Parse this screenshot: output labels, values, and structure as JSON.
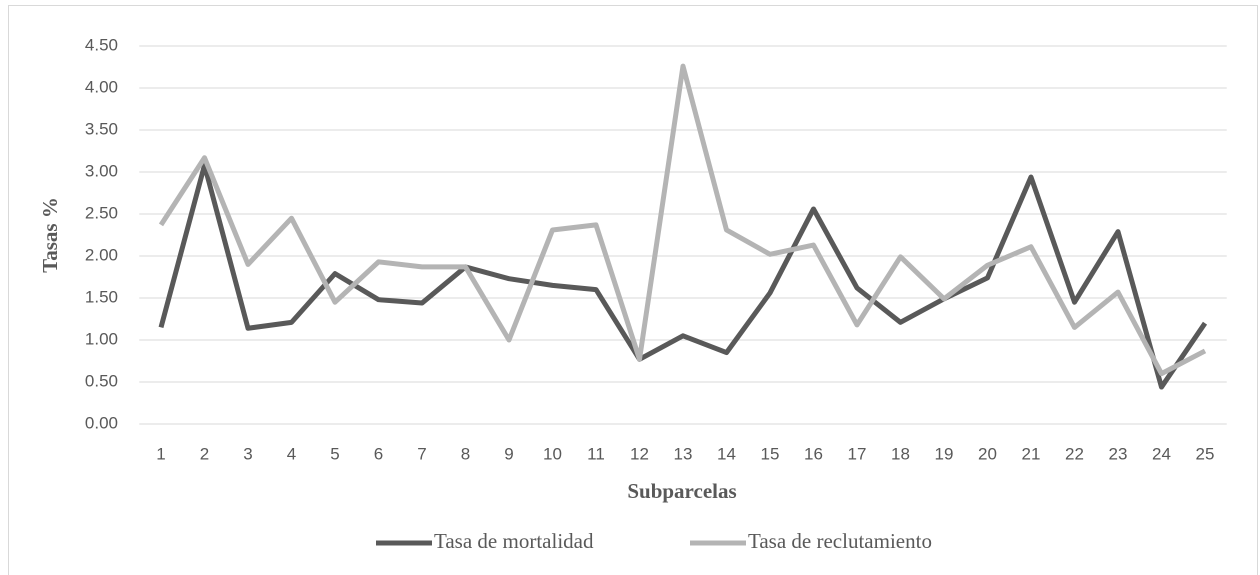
{
  "chart_data": {
    "type": "line",
    "x_label": "Subparcelas",
    "y_label": "Tasas %",
    "categories": [
      "1",
      "2",
      "3",
      "4",
      "5",
      "6",
      "7",
      "8",
      "9",
      "10",
      "11",
      "12",
      "13",
      "14",
      "15",
      "16",
      "17",
      "18",
      "19",
      "20",
      "21",
      "22",
      "23",
      "24",
      "25"
    ],
    "series": [
      {
        "name": "Tasa de mortalidad",
        "color": "#595959",
        "values": [
          1.15,
          3.08,
          1.14,
          1.21,
          1.79,
          1.48,
          1.44,
          1.87,
          1.73,
          1.65,
          1.6,
          0.77,
          1.05,
          0.85,
          1.56,
          2.56,
          1.62,
          1.21,
          1.49,
          1.74,
          2.94,
          1.45,
          2.29,
          0.44,
          1.2
        ]
      },
      {
        "name": "Tasa de reclutamiento",
        "color": "#b4b4b4",
        "values": [
          2.37,
          3.17,
          1.9,
          2.45,
          1.45,
          1.93,
          1.87,
          1.87,
          1.0,
          2.31,
          2.37,
          0.77,
          4.26,
          2.31,
          2.02,
          2.13,
          1.18,
          1.99,
          1.49,
          1.89,
          2.11,
          1.15,
          1.57,
          0.6,
          0.87
        ]
      }
    ],
    "ylim": [
      0,
      4.5
    ],
    "yticks": [
      {
        "value": 0,
        "label": "0.00"
      },
      {
        "value": 0.5,
        "label": "0.50"
      },
      {
        "value": 1,
        "label": "1.00"
      },
      {
        "value": 1.5,
        "label": "1.50"
      },
      {
        "value": 2,
        "label": "2.00"
      },
      {
        "value": 2.5,
        "label": "2.50"
      },
      {
        "value": 3,
        "label": "3.00"
      },
      {
        "value": 3.5,
        "label": "3.50"
      },
      {
        "value": 4,
        "label": "4.00"
      },
      {
        "value": 4.5,
        "label": "4.50"
      }
    ],
    "grid": true,
    "legend": "bottom"
  }
}
